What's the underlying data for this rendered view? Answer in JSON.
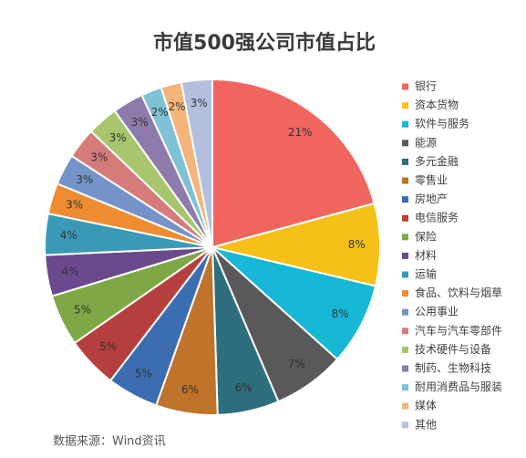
{
  "chart_data": {
    "type": "pie",
    "title": "市值500强公司市值占比",
    "categories": [
      "银行",
      "资本货物",
      "软件与服务",
      "能源",
      "多元金融",
      "零售业",
      "房地产",
      "电信服务",
      "保险",
      "材料",
      "运输",
      "食品、饮料与烟草",
      "公用事业",
      "汽车与汽车零部件",
      "技术硬件与设备",
      "制药、生物科技",
      "耐用消费品与服装",
      "媒体",
      "其他"
    ],
    "values": [
      21,
      8,
      8,
      7,
      6,
      6,
      5,
      5,
      5,
      4,
      4,
      3,
      3,
      3,
      3,
      3,
      2,
      2,
      3
    ],
    "value_labels": [
      "21%",
      "8%",
      "8%",
      "7%",
      "6%",
      "6%",
      "5%",
      "5%",
      "5%",
      "4%",
      "4%",
      "3%",
      "3%",
      "3%",
      "3%",
      "3%",
      "2%",
      "2%",
      "3%"
    ],
    "colors": [
      "#f0665f",
      "#f5c118",
      "#17b8d6",
      "#595959",
      "#2e6f7e",
      "#c0732a",
      "#3c6db1",
      "#b53f3e",
      "#7ea846",
      "#6a4a8c",
      "#3a9ab5",
      "#ef8c32",
      "#7393c9",
      "#d57b7a",
      "#a7c56d",
      "#8d7bab",
      "#7fc2d6",
      "#f5b57a",
      "#b3c0dd"
    ],
    "legend": "right",
    "source": "数据来源：Wind资讯"
  }
}
